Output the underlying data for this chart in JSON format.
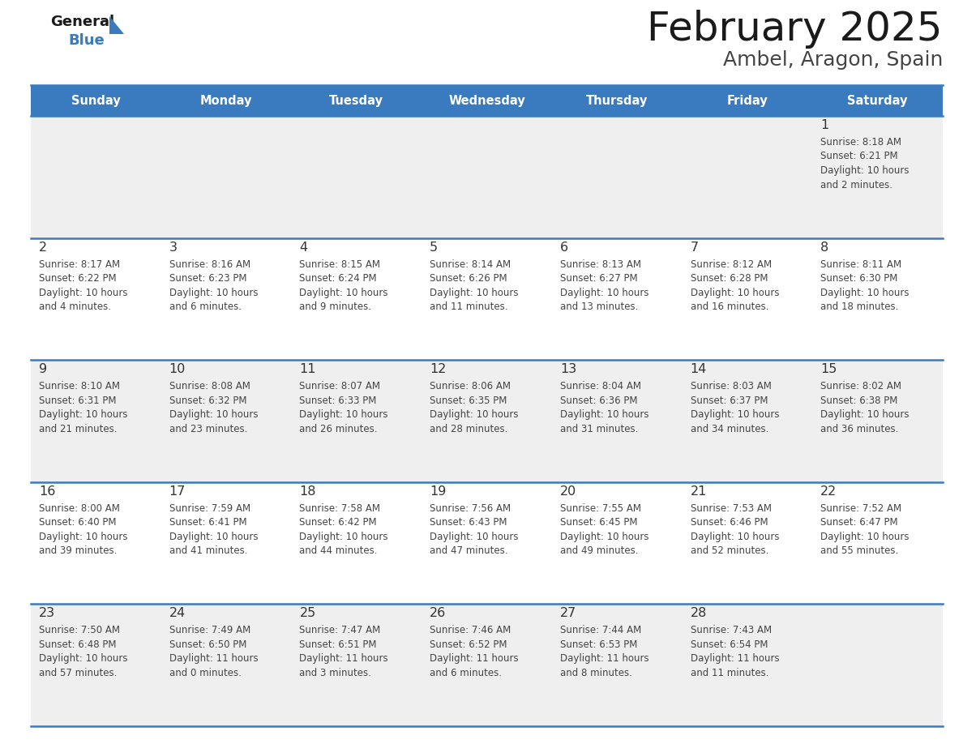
{
  "title": "February 2025",
  "subtitle": "Ambel, Aragon, Spain",
  "header_bg": "#3a7abf",
  "header_text_color": "#ffffff",
  "day_names": [
    "Sunday",
    "Monday",
    "Tuesday",
    "Wednesday",
    "Thursday",
    "Friday",
    "Saturday"
  ],
  "row_bg_odd": "#efefef",
  "row_bg_even": "#ffffff",
  "separator_color": "#3a7abf",
  "day_number_color": "#333333",
  "info_text_color": "#444444",
  "calendar": [
    [
      null,
      null,
      null,
      null,
      null,
      null,
      {
        "day": 1,
        "sunrise": "8:18 AM",
        "sunset": "6:21 PM",
        "dl1": "Daylight: 10 hours",
        "dl2": "and 2 minutes."
      }
    ],
    [
      {
        "day": 2,
        "sunrise": "8:17 AM",
        "sunset": "6:22 PM",
        "dl1": "Daylight: 10 hours",
        "dl2": "and 4 minutes."
      },
      {
        "day": 3,
        "sunrise": "8:16 AM",
        "sunset": "6:23 PM",
        "dl1": "Daylight: 10 hours",
        "dl2": "and 6 minutes."
      },
      {
        "day": 4,
        "sunrise": "8:15 AM",
        "sunset": "6:24 PM",
        "dl1": "Daylight: 10 hours",
        "dl2": "and 9 minutes."
      },
      {
        "day": 5,
        "sunrise": "8:14 AM",
        "sunset": "6:26 PM",
        "dl1": "Daylight: 10 hours",
        "dl2": "and 11 minutes."
      },
      {
        "day": 6,
        "sunrise": "8:13 AM",
        "sunset": "6:27 PM",
        "dl1": "Daylight: 10 hours",
        "dl2": "and 13 minutes."
      },
      {
        "day": 7,
        "sunrise": "8:12 AM",
        "sunset": "6:28 PM",
        "dl1": "Daylight: 10 hours",
        "dl2": "and 16 minutes."
      },
      {
        "day": 8,
        "sunrise": "8:11 AM",
        "sunset": "6:30 PM",
        "dl1": "Daylight: 10 hours",
        "dl2": "and 18 minutes."
      }
    ],
    [
      {
        "day": 9,
        "sunrise": "8:10 AM",
        "sunset": "6:31 PM",
        "dl1": "Daylight: 10 hours",
        "dl2": "and 21 minutes."
      },
      {
        "day": 10,
        "sunrise": "8:08 AM",
        "sunset": "6:32 PM",
        "dl1": "Daylight: 10 hours",
        "dl2": "and 23 minutes."
      },
      {
        "day": 11,
        "sunrise": "8:07 AM",
        "sunset": "6:33 PM",
        "dl1": "Daylight: 10 hours",
        "dl2": "and 26 minutes."
      },
      {
        "day": 12,
        "sunrise": "8:06 AM",
        "sunset": "6:35 PM",
        "dl1": "Daylight: 10 hours",
        "dl2": "and 28 minutes."
      },
      {
        "day": 13,
        "sunrise": "8:04 AM",
        "sunset": "6:36 PM",
        "dl1": "Daylight: 10 hours",
        "dl2": "and 31 minutes."
      },
      {
        "day": 14,
        "sunrise": "8:03 AM",
        "sunset": "6:37 PM",
        "dl1": "Daylight: 10 hours",
        "dl2": "and 34 minutes."
      },
      {
        "day": 15,
        "sunrise": "8:02 AM",
        "sunset": "6:38 PM",
        "dl1": "Daylight: 10 hours",
        "dl2": "and 36 minutes."
      }
    ],
    [
      {
        "day": 16,
        "sunrise": "8:00 AM",
        "sunset": "6:40 PM",
        "dl1": "Daylight: 10 hours",
        "dl2": "and 39 minutes."
      },
      {
        "day": 17,
        "sunrise": "7:59 AM",
        "sunset": "6:41 PM",
        "dl1": "Daylight: 10 hours",
        "dl2": "and 41 minutes."
      },
      {
        "day": 18,
        "sunrise": "7:58 AM",
        "sunset": "6:42 PM",
        "dl1": "Daylight: 10 hours",
        "dl2": "and 44 minutes."
      },
      {
        "day": 19,
        "sunrise": "7:56 AM",
        "sunset": "6:43 PM",
        "dl1": "Daylight: 10 hours",
        "dl2": "and 47 minutes."
      },
      {
        "day": 20,
        "sunrise": "7:55 AM",
        "sunset": "6:45 PM",
        "dl1": "Daylight: 10 hours",
        "dl2": "and 49 minutes."
      },
      {
        "day": 21,
        "sunrise": "7:53 AM",
        "sunset": "6:46 PM",
        "dl1": "Daylight: 10 hours",
        "dl2": "and 52 minutes."
      },
      {
        "day": 22,
        "sunrise": "7:52 AM",
        "sunset": "6:47 PM",
        "dl1": "Daylight: 10 hours",
        "dl2": "and 55 minutes."
      }
    ],
    [
      {
        "day": 23,
        "sunrise": "7:50 AM",
        "sunset": "6:48 PM",
        "dl1": "Daylight: 10 hours",
        "dl2": "and 57 minutes."
      },
      {
        "day": 24,
        "sunrise": "7:49 AM",
        "sunset": "6:50 PM",
        "dl1": "Daylight: 11 hours",
        "dl2": "and 0 minutes."
      },
      {
        "day": 25,
        "sunrise": "7:47 AM",
        "sunset": "6:51 PM",
        "dl1": "Daylight: 11 hours",
        "dl2": "and 3 minutes."
      },
      {
        "day": 26,
        "sunrise": "7:46 AM",
        "sunset": "6:52 PM",
        "dl1": "Daylight: 11 hours",
        "dl2": "and 6 minutes."
      },
      {
        "day": 27,
        "sunrise": "7:44 AM",
        "sunset": "6:53 PM",
        "dl1": "Daylight: 11 hours",
        "dl2": "and 8 minutes."
      },
      {
        "day": 28,
        "sunrise": "7:43 AM",
        "sunset": "6:54 PM",
        "dl1": "Daylight: 11 hours",
        "dl2": "and 11 minutes."
      },
      null
    ]
  ],
  "figwidth": 11.88,
  "figheight": 9.18,
  "dpi": 100
}
